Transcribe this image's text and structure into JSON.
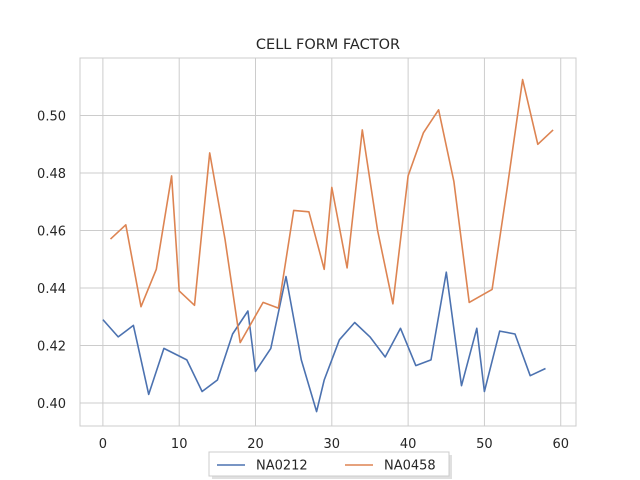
{
  "chart_data": {
    "type": "line",
    "title": "CELL FORM FACTOR",
    "xlabel": "",
    "ylabel": "",
    "xlim": [
      -3,
      62
    ],
    "ylim": [
      0.392,
      0.52
    ],
    "xticks": [
      0,
      10,
      20,
      30,
      40,
      50,
      60
    ],
    "yticks": [
      0.4,
      0.42,
      0.44,
      0.46,
      0.48,
      0.5
    ],
    "xtick_labels": [
      "0",
      "10",
      "20",
      "30",
      "40",
      "50",
      "60"
    ],
    "ytick_labels": [
      "0.40",
      "0.42",
      "0.44",
      "0.46",
      "0.48",
      "0.50"
    ],
    "grid": true,
    "legend_position": "bottom-center",
    "series": [
      {
        "name": "NA0212",
        "color": "#4c72b0",
        "x": [
          0,
          2,
          4,
          6,
          8,
          11,
          13,
          15,
          17,
          19,
          20,
          22,
          24,
          26,
          28,
          29,
          31,
          33,
          35,
          37,
          39,
          41,
          43,
          45,
          47,
          49,
          50,
          52,
          54,
          56,
          58
        ],
        "y": [
          0.429,
          0.423,
          0.427,
          0.403,
          0.419,
          0.415,
          0.404,
          0.408,
          0.424,
          0.432,
          0.411,
          0.419,
          0.444,
          0.415,
          0.397,
          0.408,
          0.422,
          0.428,
          0.423,
          0.416,
          0.426,
          0.413,
          0.415,
          0.4455,
          0.406,
          0.426,
          0.404,
          0.425,
          0.424,
          0.4095,
          0.412
        ]
      },
      {
        "name": "NA0458",
        "color": "#dd8452",
        "x": [
          1,
          3,
          5,
          7,
          9,
          10,
          12,
          14,
          16,
          18,
          21,
          23,
          25,
          27,
          29,
          30,
          32,
          34,
          36,
          38,
          40,
          42,
          44,
          46,
          48,
          51,
          53,
          55,
          57,
          59
        ],
        "y": [
          0.457,
          0.462,
          0.4335,
          0.4465,
          0.479,
          0.439,
          0.434,
          0.487,
          0.457,
          0.421,
          0.435,
          0.433,
          0.467,
          0.4665,
          0.4465,
          0.475,
          0.447,
          0.495,
          0.46,
          0.4345,
          0.479,
          0.494,
          0.502,
          0.477,
          0.435,
          0.4395,
          0.475,
          0.5125,
          0.49,
          0.495
        ]
      }
    ]
  }
}
